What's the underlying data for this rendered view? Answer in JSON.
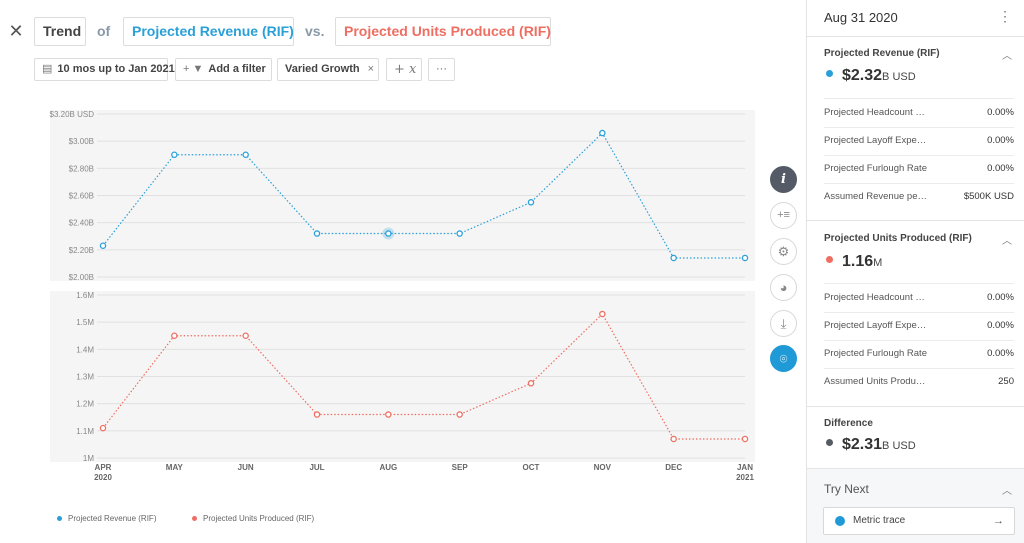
{
  "header": {
    "trend_label": "Trend",
    "of_word": "of",
    "metric_a": "Projected Revenue (RIF)",
    "vs_word": "vs.",
    "metric_b": "Projected Units Produced (RIF)"
  },
  "filters": {
    "date_range": "10 mos up to Jan 2021",
    "add_filter": "Add a filter",
    "scenario": "Varied Growth",
    "scenario_remove": "×",
    "formula": "+ 𝑥",
    "more": "···"
  },
  "chart_data": [
    {
      "type": "line",
      "name": "Projected Revenue (RIF)",
      "color": "#2aa0d8",
      "categories": [
        "APR",
        "MAY",
        "JUN",
        "JUL",
        "AUG",
        "SEP",
        "OCT",
        "NOV",
        "DEC",
        "JAN"
      ],
      "category_years": [
        "2020",
        "",
        "",
        "",
        "",
        "",
        "",
        "",
        "",
        "2021"
      ],
      "values": [
        2.23,
        2.9,
        2.9,
        2.32,
        2.32,
        2.32,
        2.55,
        3.06,
        2.14,
        2.14
      ],
      "ylim": [
        2.0,
        3.2
      ],
      "yticks": [
        2.0,
        2.2,
        2.4,
        2.6,
        2.8,
        3.0,
        3.2
      ],
      "ytick_labels": [
        "$2.00B",
        "$2.20B",
        "$2.40B",
        "$2.60B",
        "$2.80B",
        "$3.00B",
        "$3.20B USD"
      ],
      "highlight_index": 4,
      "grid": true
    },
    {
      "type": "line",
      "name": "Projected Units Produced (RIF)",
      "color": "#ef6e62",
      "categories": [
        "APR",
        "MAY",
        "JUN",
        "JUL",
        "AUG",
        "SEP",
        "OCT",
        "NOV",
        "DEC",
        "JAN"
      ],
      "values": [
        1.11,
        1.45,
        1.45,
        1.16,
        1.16,
        1.16,
        1.275,
        1.53,
        1.07,
        1.07
      ],
      "ylim": [
        1.0,
        1.6
      ],
      "yticks": [
        1.0,
        1.1,
        1.2,
        1.3,
        1.4,
        1.5,
        1.6
      ],
      "ytick_labels": [
        "1M",
        "1.1M",
        "1.2M",
        "1.3M",
        "1.4M",
        "1.5M",
        "1.6M"
      ],
      "grid": true
    }
  ],
  "legend": {
    "a": "Projected Revenue (RIF)",
    "b": "Projected Units Produced (RIF)"
  },
  "tools": {
    "info": "i",
    "add_series": "+≡",
    "settings": "⚙",
    "palette": "◕",
    "download": "⤓",
    "screenshot": "⌾"
  },
  "panel": {
    "date": "Aug 31 2020",
    "kebab": "⋮",
    "rev": {
      "title": "Projected Revenue (RIF)",
      "value": "$2.32",
      "unit": "B USD",
      "rows": [
        {
          "label": "Projected Headcount Reduction",
          "value": "0.00%"
        },
        {
          "label": "Projected Layoff Expense",
          "value": "0.00%"
        },
        {
          "label": "Projected Furlough Rate",
          "value": "0.00%"
        },
        {
          "label": "Assumed Revenue per Employee",
          "value": "$500K USD"
        }
      ]
    },
    "units": {
      "title": "Projected Units Produced (RIF)",
      "value": "1.16",
      "unit": "M",
      "rows": [
        {
          "label": "Projected Headcount Reduction",
          "value": "0.00%"
        },
        {
          "label": "Projected Layoff Expense",
          "value": "0.00%"
        },
        {
          "label": "Projected Furlough Rate",
          "value": "0.00%"
        },
        {
          "label": "Assumed Units Produced per Employee",
          "value": "250"
        }
      ]
    },
    "difference": {
      "title": "Difference",
      "value": "$2.31",
      "unit": "B USD",
      "color": "#555b63"
    },
    "try_next": "Try Next",
    "metric_trace": "Metric trace"
  }
}
